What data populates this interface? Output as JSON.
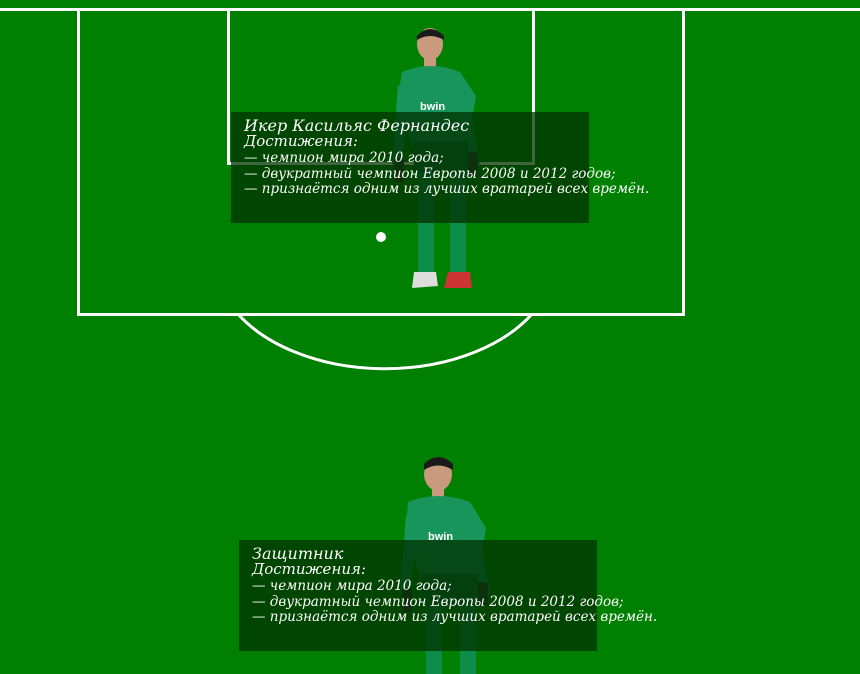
{
  "colors": {
    "pitch": "#008000",
    "lines": "#ffffff",
    "card_bg": "rgba(0,50,0,0.75)"
  },
  "player_cards": [
    {
      "title": "Икер Касильяс Фернандес",
      "subtitle": "Достижения:",
      "items": [
        "— чемпион мира 2010 года;",
        "— двукратный чемпион Европы 2008 и 2012 годов;",
        "— признаётся одним из лучших вратарей всех времён."
      ]
    },
    {
      "title": "Защитник",
      "subtitle": "Достижения:",
      "items": [
        "— чемпион мира 2010 года;",
        "— двукратный чемпион Европы 2008 и 2012 годов;",
        "— признаётся одним из лучших вратарей всех времён."
      ]
    }
  ],
  "sponsor_text": "bwin"
}
